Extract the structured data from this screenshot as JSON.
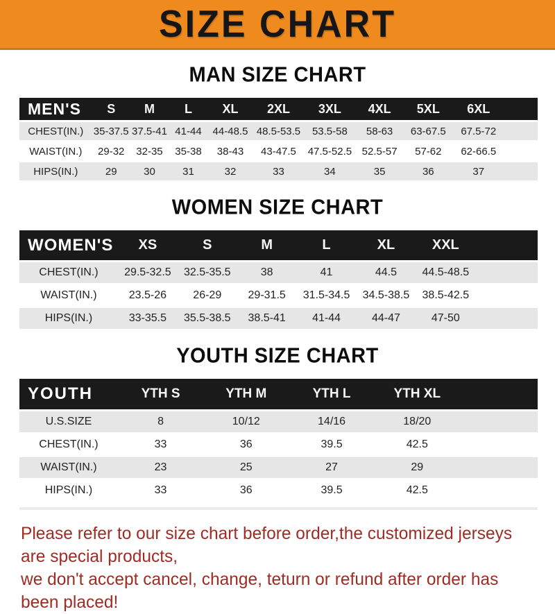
{
  "banner": {
    "title": "SIZE CHART",
    "bg_color": "#ef8a1f",
    "text_color": "#161616"
  },
  "sections": [
    {
      "heading": "MAN SIZE CHART",
      "table": {
        "corner": "MEN'S",
        "columns": [
          "S",
          "M",
          "L",
          "XL",
          "2XL",
          "3XL",
          "4XL",
          "5XL",
          "6XL"
        ],
        "rows": [
          {
            "label": "CHEST(IN.)",
            "values": [
              "35-37.5",
              "37.5-41",
              "41-44",
              "44-48.5",
              "48.5-53.5",
              "53.5-58",
              "58-63",
              "63-67.5",
              "67.5-72"
            ]
          },
          {
            "label": "WAIST(IN.)",
            "values": [
              "29-32",
              "32-35",
              "35-38",
              "38-43",
              "43-47.5",
              "47.5-52.5",
              "52.5-57",
              "57-62",
              "62-66.5"
            ]
          },
          {
            "label": "HIPS(IN.)",
            "values": [
              "29",
              "30",
              "31",
              "32",
              "33",
              "34",
              "35",
              "36",
              "37"
            ]
          }
        ]
      }
    },
    {
      "heading": "WOMEN SIZE CHART",
      "table": {
        "corner": "WOMEN'S",
        "columns": [
          "XS",
          "S",
          "M",
          "L",
          "XL",
          "XXL"
        ],
        "rows": [
          {
            "label": "CHEST(IN.)",
            "values": [
              "29.5-32.5",
              "32.5-35.5",
              "38",
              "41",
              "44.5",
              "44.5-48.5"
            ]
          },
          {
            "label": "WAIST(IN.)",
            "values": [
              "23.5-26",
              "26-29",
              "29-31.5",
              "31.5-34.5",
              "34.5-38.5",
              "38.5-42.5"
            ]
          },
          {
            "label": "HIPS(IN.)",
            "values": [
              "33-35.5",
              "35.5-38.5",
              "38.5-41",
              "41-44",
              "44-47",
              "47-50"
            ]
          }
        ]
      }
    },
    {
      "heading": "YOUTH SIZE CHART",
      "table": {
        "corner": "YOUTH",
        "columns": [
          "YTH S",
          "YTH M",
          "YTH L",
          "YTH XL"
        ],
        "rows": [
          {
            "label": "U.S.SIZE",
            "values": [
              "8",
              "10/12",
              "14/16",
              "18/20"
            ]
          },
          {
            "label": "CHEST(IN.)",
            "values": [
              "33",
              "36",
              "39.5",
              "42.5"
            ]
          },
          {
            "label": "WAIST(IN.)",
            "values": [
              "23",
              "25",
              "27",
              "29"
            ]
          },
          {
            "label": "HIPS(IN.)",
            "values": [
              "33",
              "36",
              "39.5",
              "42.5"
            ]
          }
        ]
      }
    }
  ],
  "footer": {
    "line1": "Please refer to our size chart before order,the customized jerseys are special products,",
    "line2": "we don't accept cancel, change, teturn or refund after order has been placed!",
    "color": "#9f2b23"
  }
}
